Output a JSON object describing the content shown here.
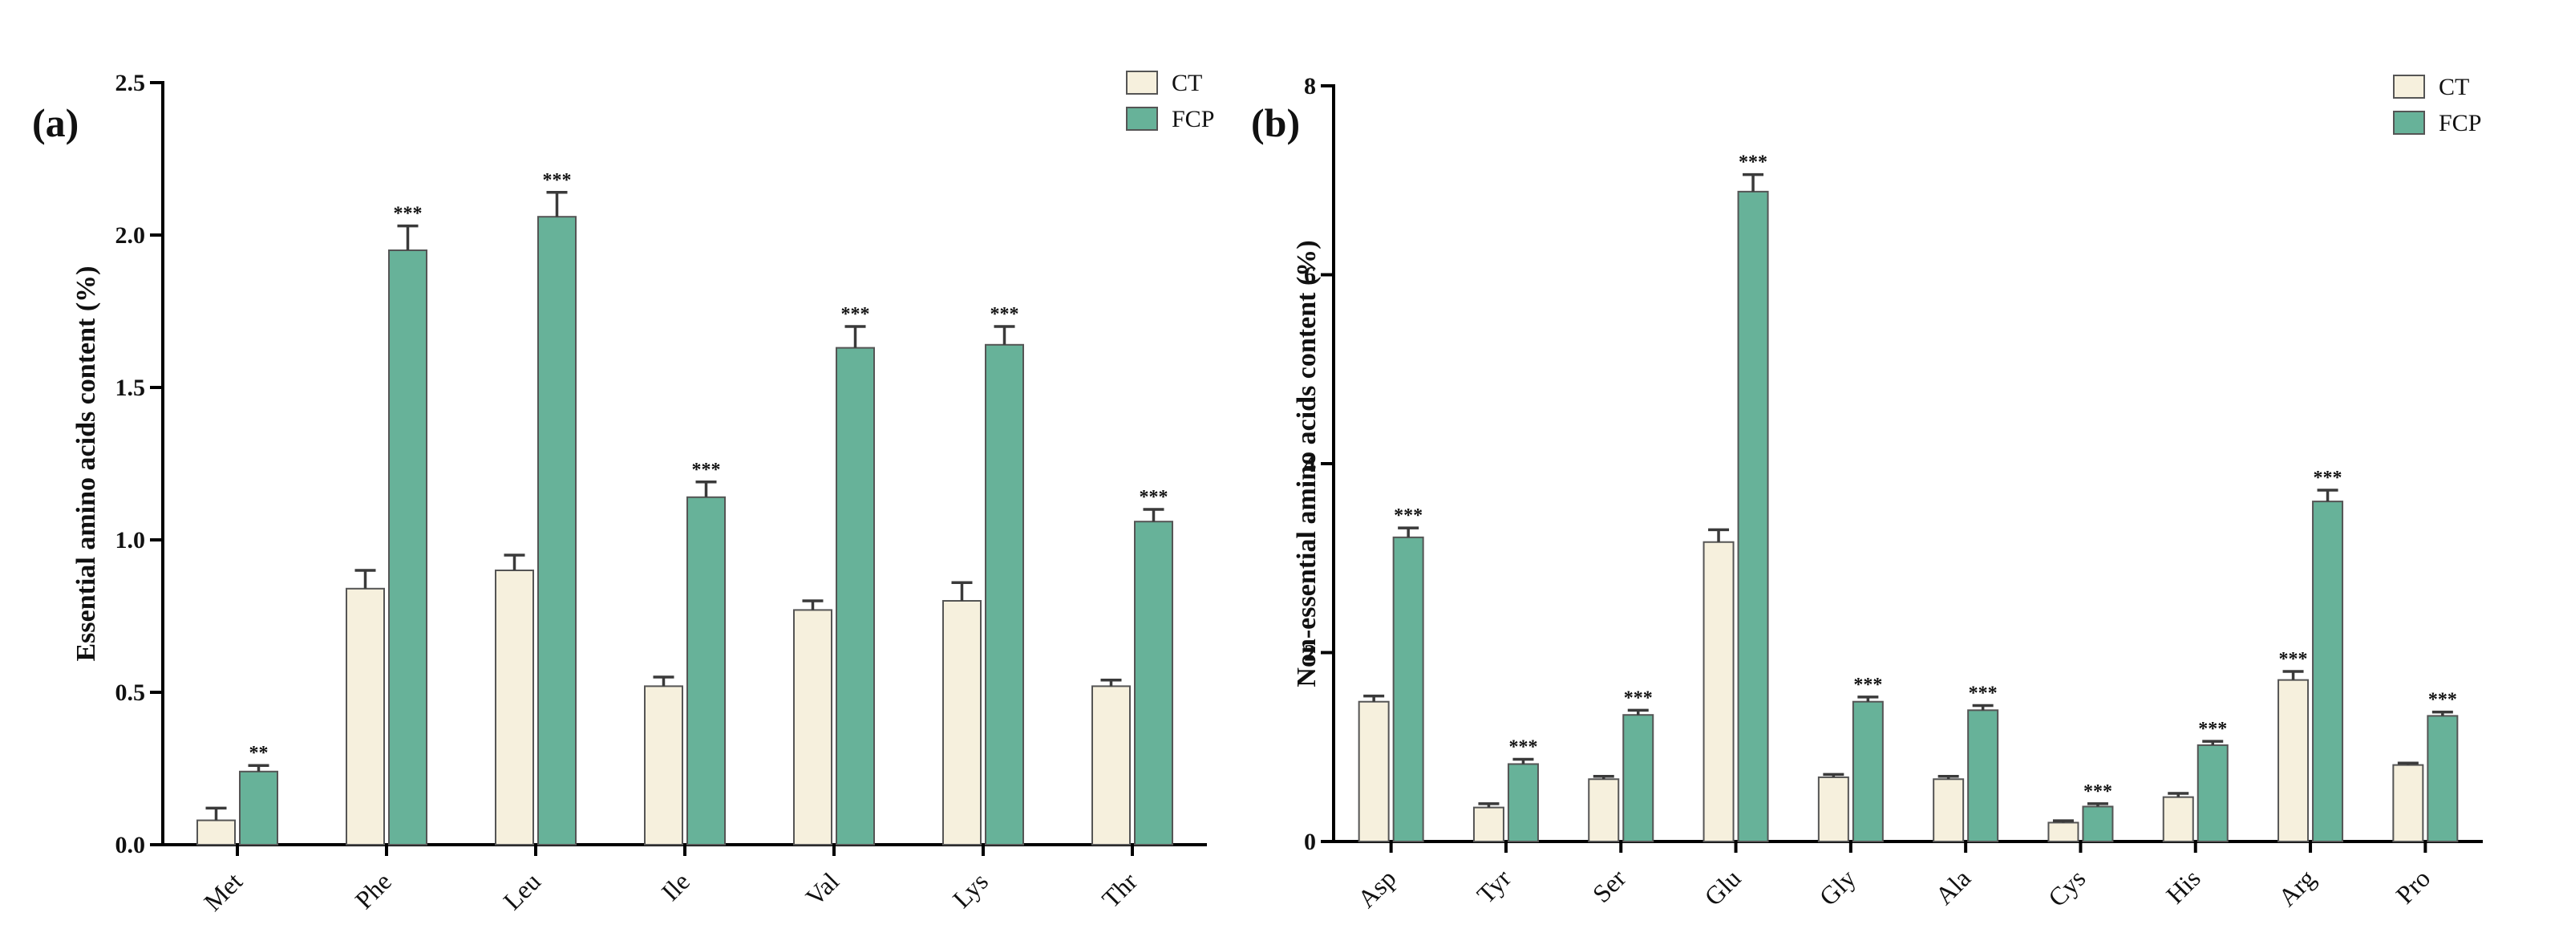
{
  "chart_data": [
    {
      "type": "bar",
      "panel_label": "(a)",
      "ylabel": "Essential amino acids content (%)",
      "xlabel": "",
      "ylim": [
        0,
        2.5
      ],
      "yticks": [
        "0.0",
        "0.5",
        "1.0",
        "1.5",
        "2.0",
        "2.5"
      ],
      "legend_position": "top-right",
      "categories": [
        "Met",
        "Phe",
        "Leu",
        "Ile",
        "Val",
        "Lys",
        "Thr"
      ],
      "series": [
        {
          "name": "CT",
          "color": "#f6f0dd",
          "values": [
            0.08,
            0.84,
            0.9,
            0.52,
            0.77,
            0.8,
            0.52
          ],
          "errors": [
            0.04,
            0.06,
            0.05,
            0.03,
            0.03,
            0.06,
            0.02
          ],
          "significance": [
            "",
            "",
            "",
            "",
            "",
            "",
            ""
          ]
        },
        {
          "name": "FCP",
          "color": "#67b299",
          "values": [
            0.24,
            1.95,
            2.06,
            1.14,
            1.63,
            1.64,
            1.06
          ],
          "errors": [
            0.02,
            0.08,
            0.08,
            0.05,
            0.07,
            0.06,
            0.04
          ],
          "significance": [
            "**",
            "***",
            "***",
            "***",
            "***",
            "***",
            "***"
          ]
        }
      ]
    },
    {
      "type": "bar",
      "panel_label": "(b)",
      "ylabel": "Non-essential amino acids content (%)",
      "xlabel": "",
      "ylim": [
        0,
        8
      ],
      "yticks": [
        "0",
        "2",
        "4",
        "6",
        "8"
      ],
      "legend_position": "top-right",
      "categories": [
        "Asp",
        "Tyr",
        "Ser",
        "Glu",
        "Gly",
        "Ala",
        "Cys",
        "His",
        "Arg",
        "Pro"
      ],
      "series": [
        {
          "name": "CT",
          "color": "#f6f0dd",
          "values": [
            1.48,
            0.36,
            0.66,
            3.17,
            0.68,
            0.66,
            0.2,
            0.47,
            1.71,
            0.81
          ],
          "errors": [
            0.06,
            0.04,
            0.03,
            0.13,
            0.03,
            0.03,
            0.02,
            0.04,
            0.09,
            0.02
          ],
          "significance": [
            "",
            "",
            "",
            "",
            "",
            "",
            "",
            "",
            "***",
            ""
          ]
        },
        {
          "name": "FCP",
          "color": "#67b299",
          "values": [
            3.22,
            0.82,
            1.34,
            6.88,
            1.48,
            1.39,
            0.37,
            1.02,
            3.6,
            1.33
          ],
          "errors": [
            0.1,
            0.05,
            0.05,
            0.18,
            0.05,
            0.05,
            0.03,
            0.04,
            0.12,
            0.04
          ],
          "significance": [
            "***",
            "***",
            "***",
            "***",
            "***",
            "***",
            "***",
            "***",
            "***",
            "***"
          ]
        }
      ]
    }
  ]
}
